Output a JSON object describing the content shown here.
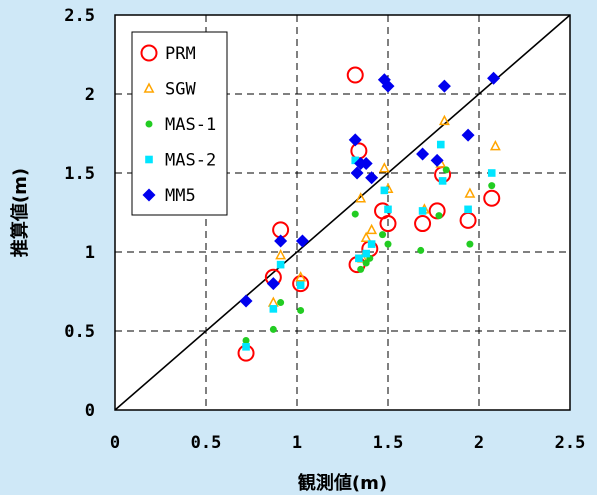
{
  "chart_data": {
    "type": "scatter",
    "xlabel": "観測値(m)",
    "ylabel": "推算値(m)",
    "xlim": [
      0,
      2.5
    ],
    "ylim": [
      0,
      2.5
    ],
    "x_ticks": [
      "0",
      "0.5",
      "1",
      "1.5",
      "2",
      "2.5"
    ],
    "y_ticks": [
      "0",
      "0.5",
      "1",
      "1.5",
      "2",
      "2.5"
    ],
    "grid": "dashed",
    "legend_position": "top-left",
    "reference_line": {
      "label": "1:1",
      "from": [
        0,
        0
      ],
      "to": [
        2.5,
        2.5
      ],
      "color": "#000000"
    },
    "series": [
      {
        "name": "PRM",
        "marker": "circle-open",
        "color": "#ff0000",
        "points": [
          [
            0.72,
            0.36
          ],
          [
            0.87,
            0.84
          ],
          [
            0.91,
            1.14
          ],
          [
            1.02,
            0.8
          ],
          [
            1.33,
            0.92
          ],
          [
            1.32,
            2.12
          ],
          [
            1.34,
            1.64
          ],
          [
            1.4,
            1.02
          ],
          [
            1.47,
            1.26
          ],
          [
            1.5,
            1.18
          ],
          [
            1.69,
            1.18
          ],
          [
            1.77,
            1.26
          ],
          [
            1.8,
            1.49
          ],
          [
            1.94,
            1.2
          ],
          [
            2.07,
            1.34
          ]
        ]
      },
      {
        "name": "SGW",
        "marker": "triangle-open",
        "color": "#ffa500",
        "points": [
          [
            0.87,
            0.68
          ],
          [
            0.91,
            0.98
          ],
          [
            1.02,
            0.84
          ],
          [
            1.35,
            1.34
          ],
          [
            1.36,
            0.96
          ],
          [
            1.38,
            1.09
          ],
          [
            1.41,
            1.14
          ],
          [
            1.48,
            1.53
          ],
          [
            1.5,
            1.4
          ],
          [
            1.7,
            1.27
          ],
          [
            1.79,
            1.56
          ],
          [
            1.81,
            1.83
          ],
          [
            1.95,
            1.37
          ],
          [
            2.09,
            1.67
          ]
        ]
      },
      {
        "name": "MAS-1",
        "marker": "circle-filled",
        "color": "#22cc22",
        "points": [
          [
            0.72,
            0.44
          ],
          [
            0.87,
            0.51
          ],
          [
            0.91,
            0.68
          ],
          [
            1.02,
            0.63
          ],
          [
            1.32,
            1.24
          ],
          [
            1.35,
            0.89
          ],
          [
            1.38,
            0.93
          ],
          [
            1.4,
            0.96
          ],
          [
            1.47,
            1.11
          ],
          [
            1.5,
            1.05
          ],
          [
            1.68,
            1.01
          ],
          [
            1.78,
            1.23
          ],
          [
            1.82,
            1.52
          ],
          [
            1.95,
            1.05
          ],
          [
            2.07,
            1.42
          ]
        ]
      },
      {
        "name": "MAS-2",
        "marker": "square-filled",
        "color": "#00e5ff",
        "points": [
          [
            0.72,
            0.4
          ],
          [
            0.87,
            0.64
          ],
          [
            0.91,
            0.92
          ],
          [
            1.02,
            0.79
          ],
          [
            1.32,
            1.58
          ],
          [
            1.34,
            0.96
          ],
          [
            1.38,
            0.99
          ],
          [
            1.41,
            1.05
          ],
          [
            1.48,
            1.39
          ],
          [
            1.5,
            1.27
          ],
          [
            1.69,
            1.26
          ],
          [
            1.79,
            1.68
          ],
          [
            1.8,
            1.45
          ],
          [
            1.94,
            1.27
          ],
          [
            2.07,
            1.5
          ]
        ]
      },
      {
        "name": "MM5",
        "marker": "diamond-filled",
        "color": "#0000ee",
        "points": [
          [
            0.72,
            0.69
          ],
          [
            0.87,
            0.8
          ],
          [
            0.91,
            1.07
          ],
          [
            1.03,
            1.07
          ],
          [
            1.32,
            1.71
          ],
          [
            1.33,
            1.5
          ],
          [
            1.35,
            1.56
          ],
          [
            1.38,
            1.56
          ],
          [
            1.41,
            1.47
          ],
          [
            1.48,
            2.09
          ],
          [
            1.5,
            2.05
          ],
          [
            1.69,
            1.62
          ],
          [
            1.77,
            1.58
          ],
          [
            1.81,
            2.05
          ],
          [
            1.94,
            1.74
          ],
          [
            2.08,
            2.1
          ]
        ]
      }
    ]
  }
}
